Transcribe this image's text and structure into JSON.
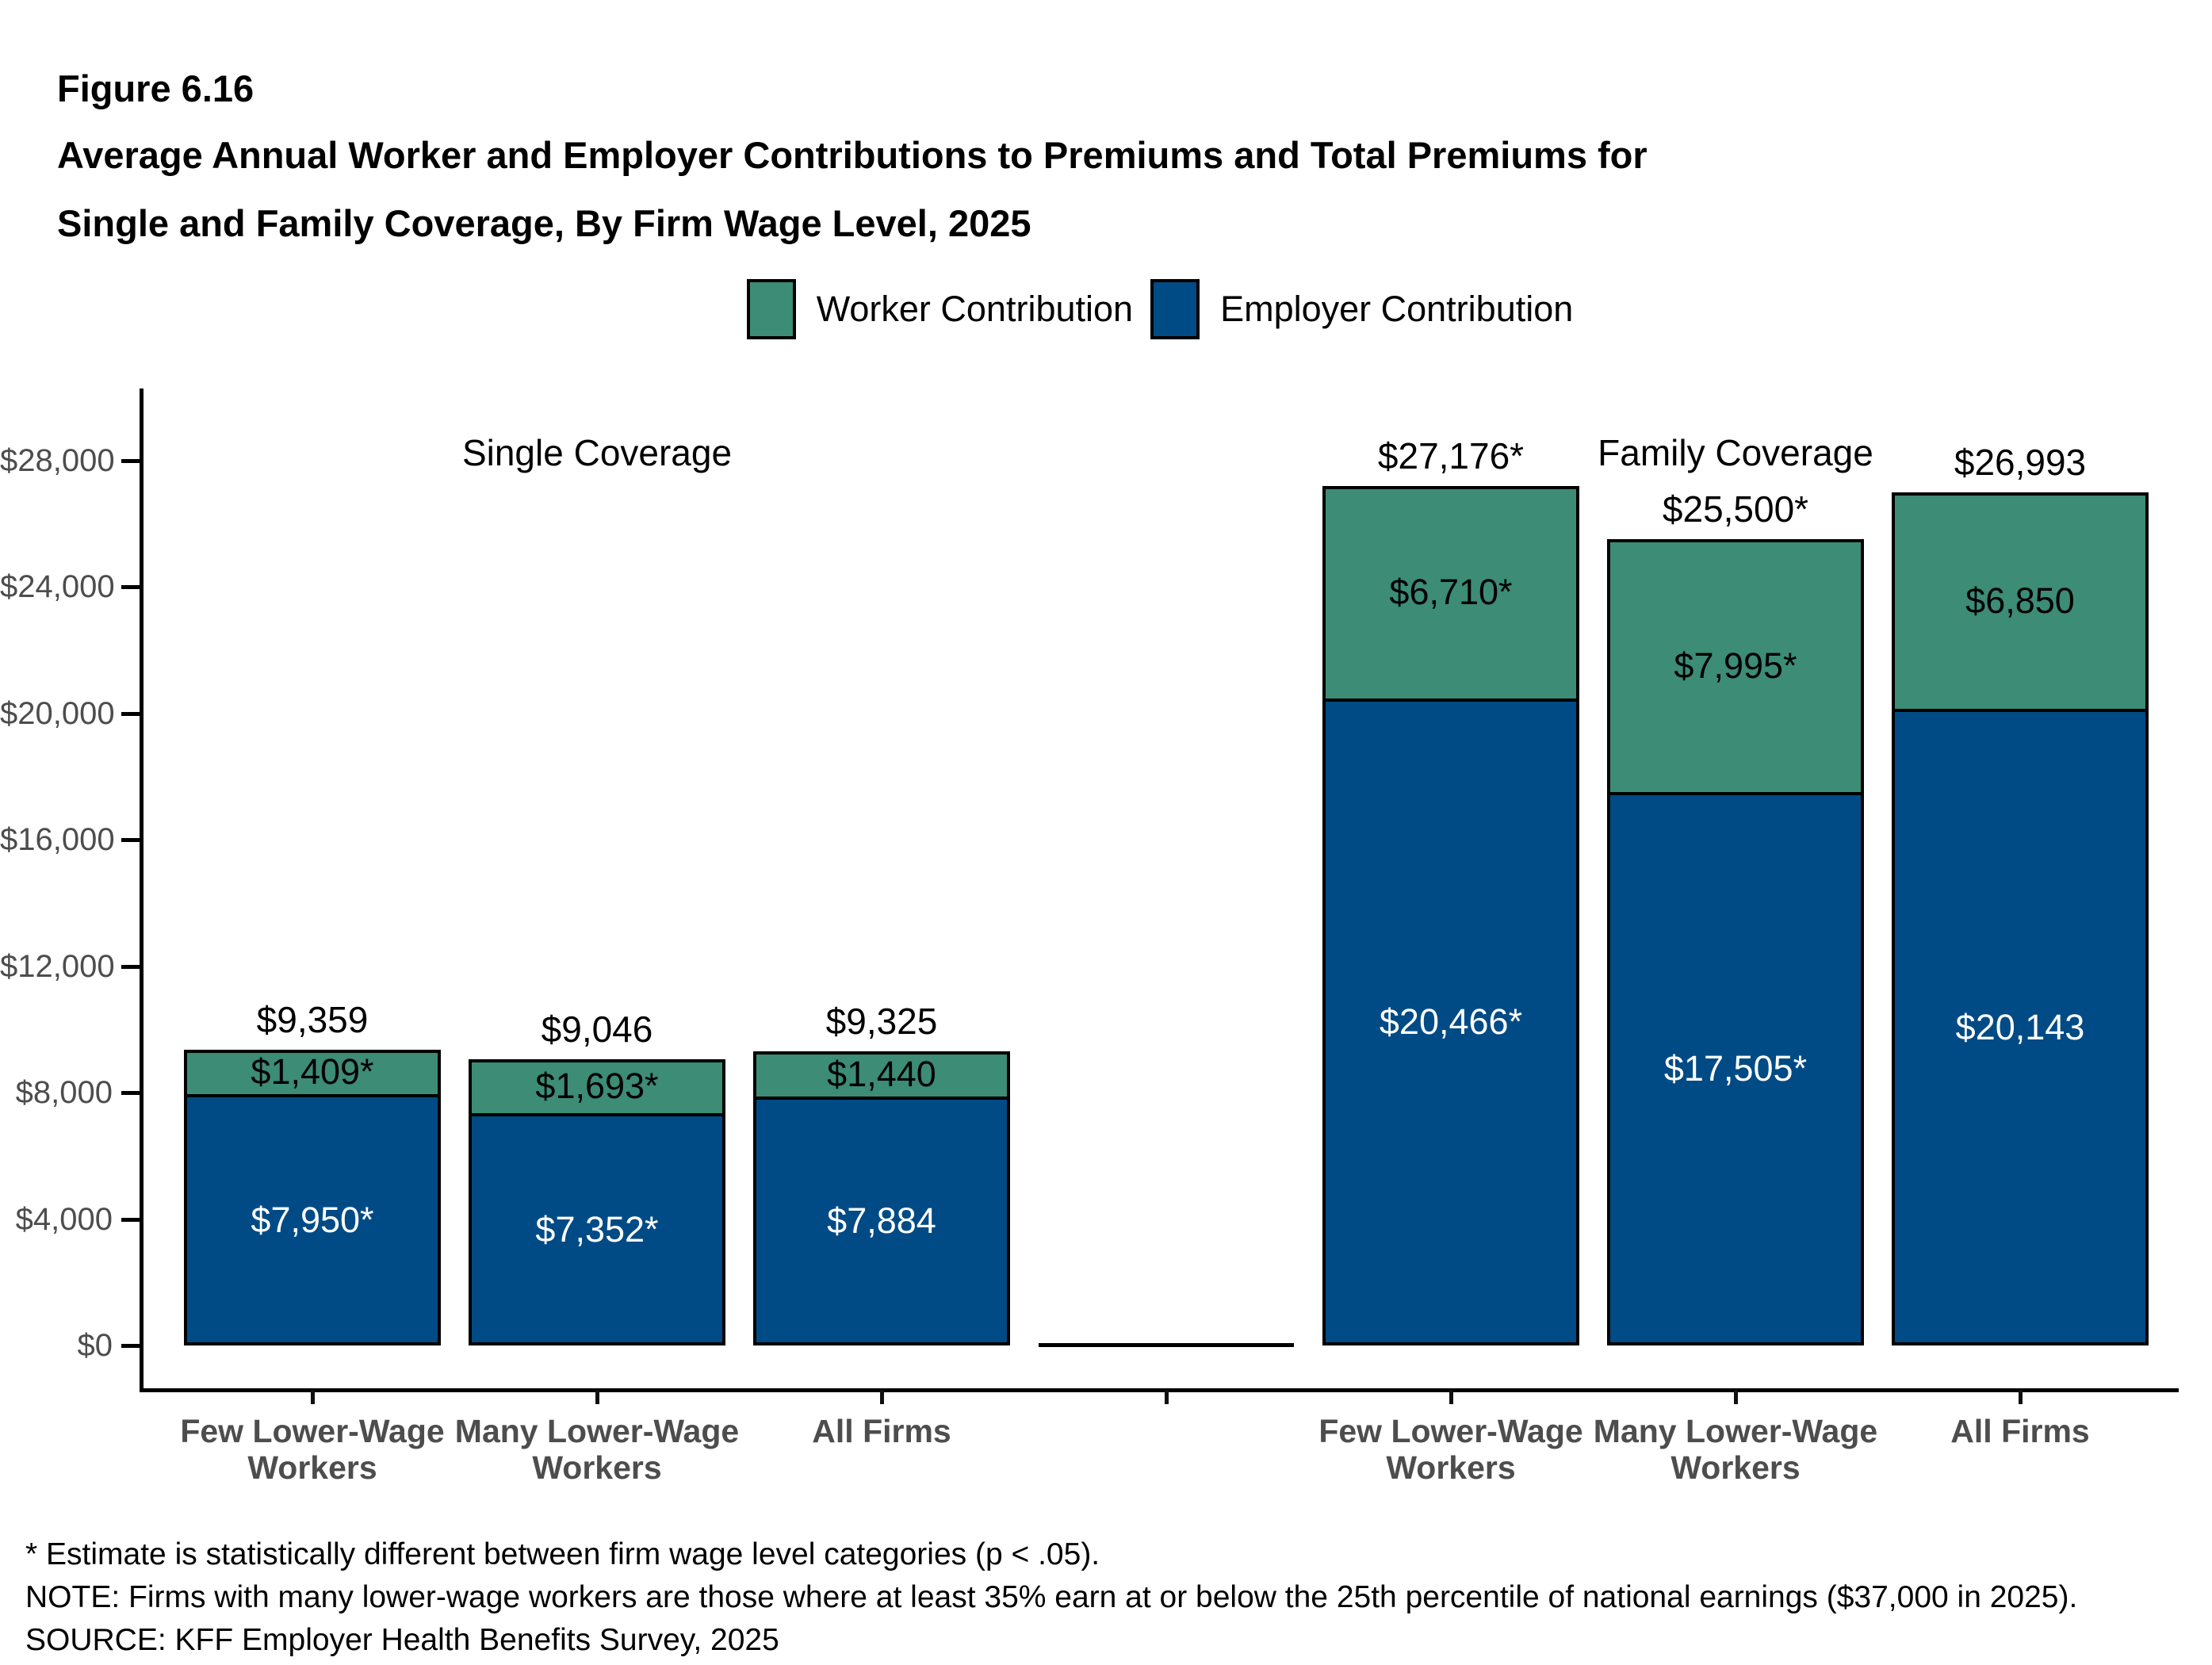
{
  "header": {
    "figure_number": "Figure 6.16",
    "title_line1": "Average Annual Worker and Employer Contributions to Premiums and Total Premiums for",
    "title_line2": "Single and Family Coverage, By Firm Wage Level, 2025"
  },
  "legend": {
    "items": [
      {
        "label": "Worker Contribution",
        "color": "#3D8C75"
      },
      {
        "label": "Employer Contribution",
        "color": "#004B85"
      }
    ]
  },
  "chart_data": {
    "type": "bar",
    "stacked": true,
    "title": "Average Annual Worker and Employer Contributions to Premiums and Total Premiums for Single and Family Coverage, By Firm Wage Level, 2025",
    "xlabel": "",
    "ylabel": "",
    "ylim": [
      0,
      28000
    ],
    "grid": false,
    "legend_position": "top-center",
    "y_axis": {
      "ticks": [
        {
          "value": 0,
          "label": "$0"
        },
        {
          "value": 4000,
          "label": "$4,000"
        },
        {
          "value": 8000,
          "label": "$8,000"
        },
        {
          "value": 12000,
          "label": "$12,000"
        },
        {
          "value": 16000,
          "label": "$16,000"
        },
        {
          "value": 20000,
          "label": "$20,000"
        },
        {
          "value": 24000,
          "label": "$24,000"
        },
        {
          "value": 28000,
          "label": "$28,000"
        }
      ]
    },
    "series": [
      {
        "name": "Worker Contribution",
        "color": "#3D8C75"
      },
      {
        "name": "Employer Contribution",
        "color": "#004B85"
      }
    ],
    "groups": [
      {
        "label": "Single Coverage",
        "bars": [
          {
            "category_lines": [
              "Few Lower-Wage",
              "Workers"
            ],
            "employer_value": 7950,
            "worker_value": 1409,
            "total_value": 9359,
            "employer_label": "$7,950*",
            "worker_label": "$1,409*",
            "total_label": "$9,359"
          },
          {
            "category_lines": [
              "Many Lower-Wage",
              "Workers"
            ],
            "employer_value": 7352,
            "worker_value": 1693,
            "total_value": 9046,
            "employer_label": "$7,352*",
            "worker_label": "$1,693*",
            "total_label": "$9,046"
          },
          {
            "category_lines": [
              "All Firms"
            ],
            "employer_value": 7884,
            "worker_value": 1440,
            "total_value": 9325,
            "employer_label": "$7,884",
            "worker_label": "$1,440",
            "total_label": "$9,325"
          }
        ]
      },
      {
        "label": "Family Coverage",
        "bars": [
          {
            "category_lines": [
              "Few Lower-Wage",
              "Workers"
            ],
            "employer_value": 20466,
            "worker_value": 6710,
            "total_value": 27176,
            "employer_label": "$20,466*",
            "worker_label": "$6,710*",
            "total_label": "$27,176*"
          },
          {
            "category_lines": [
              "Many Lower-Wage",
              "Workers"
            ],
            "employer_value": 17505,
            "worker_value": 7995,
            "total_value": 25500,
            "employer_label": "$17,505*",
            "worker_label": "$7,995*",
            "total_label": "$25,500*"
          },
          {
            "category_lines": [
              "All Firms"
            ],
            "employer_value": 20143,
            "worker_value": 6850,
            "total_value": 26993,
            "employer_label": "$20,143",
            "worker_label": "$6,850",
            "total_label": "$26,993"
          }
        ]
      }
    ]
  },
  "footnotes": {
    "asterisk": "* Estimate is statistically different between firm wage level categories (p < .05).",
    "note": "NOTE: Firms with many lower-wage workers are those where at least 35% earn at or below the 25th percentile of national earnings ($37,000 in 2025).",
    "source": "SOURCE: KFF Employer Health Benefits Survey, 2025"
  }
}
